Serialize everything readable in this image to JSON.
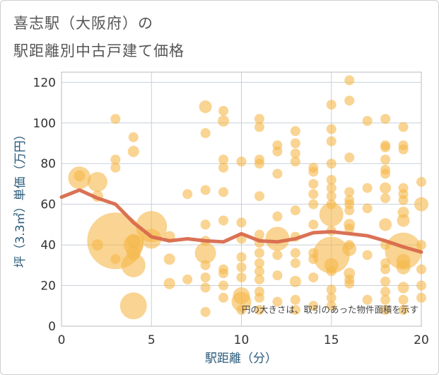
{
  "title_line1": "喜志駅（大阪府）の",
  "title_line2": "駅距離別中古戸建て価格",
  "chart_data": {
    "type": "scatter",
    "title": "喜志駅（大阪府）の 駅距離別中古戸建て価格",
    "xlabel": "駅距離（分）",
    "ylabel": "坪（3.3㎡）単価（万円）",
    "xlim": [
      0,
      20
    ],
    "ylim": [
      0,
      125
    ],
    "xticks": [
      0,
      5,
      10,
      15,
      20
    ],
    "yticks": [
      0,
      20,
      40,
      60,
      80,
      100,
      120
    ],
    "grid": true,
    "annotation": "円の大きさは、取引のあった物件面積を示す",
    "bubble_color": "#f5b84a",
    "line_color": "#d86a4d",
    "bubbles": [
      {
        "x": 1,
        "y": 73,
        "s": 16
      },
      {
        "x": 1,
        "y": 74,
        "s": 8
      },
      {
        "x": 2,
        "y": 71,
        "s": 14
      },
      {
        "x": 2,
        "y": 64,
        "s": 8
      },
      {
        "x": 2,
        "y": 40,
        "s": 8
      },
      {
        "x": 3,
        "y": 102,
        "s": 7
      },
      {
        "x": 3,
        "y": 82,
        "s": 7
      },
      {
        "x": 3,
        "y": 78,
        "s": 7
      },
      {
        "x": 3,
        "y": 42,
        "s": 40
      },
      {
        "x": 3,
        "y": 33,
        "s": 7
      },
      {
        "x": 4,
        "y": 93,
        "s": 7
      },
      {
        "x": 4,
        "y": 86,
        "s": 8
      },
      {
        "x": 4,
        "y": 42,
        "s": 10
      },
      {
        "x": 4,
        "y": 40,
        "s": 14
      },
      {
        "x": 4,
        "y": 36,
        "s": 10
      },
      {
        "x": 4,
        "y": 30,
        "s": 17
      },
      {
        "x": 4,
        "y": 10,
        "s": 19
      },
      {
        "x": 5,
        "y": 49,
        "s": 22
      },
      {
        "x": 5,
        "y": 43,
        "s": 14
      },
      {
        "x": 6,
        "y": 44,
        "s": 8
      },
      {
        "x": 6,
        "y": 33,
        "s": 8
      },
      {
        "x": 6,
        "y": 21,
        "s": 8
      },
      {
        "x": 7,
        "y": 65,
        "s": 7
      },
      {
        "x": 7,
        "y": 23,
        "s": 7
      },
      {
        "x": 8,
        "y": 108,
        "s": 9
      },
      {
        "x": 8,
        "y": 95,
        "s": 7
      },
      {
        "x": 8,
        "y": 67,
        "s": 7
      },
      {
        "x": 8,
        "y": 50,
        "s": 7
      },
      {
        "x": 8,
        "y": 42,
        "s": 7
      },
      {
        "x": 8,
        "y": 36,
        "s": 15
      },
      {
        "x": 8,
        "y": 30,
        "s": 7
      },
      {
        "x": 8,
        "y": 24,
        "s": 7
      },
      {
        "x": 8,
        "y": 19,
        "s": 7
      },
      {
        "x": 8,
        "y": 7,
        "s": 7
      },
      {
        "x": 9,
        "y": 106,
        "s": 7
      },
      {
        "x": 9,
        "y": 101,
        "s": 8
      },
      {
        "x": 9,
        "y": 82,
        "s": 7
      },
      {
        "x": 9,
        "y": 78,
        "s": 7
      },
      {
        "x": 9,
        "y": 66,
        "s": 7
      },
      {
        "x": 9,
        "y": 52,
        "s": 7
      },
      {
        "x": 9,
        "y": 28,
        "s": 7
      },
      {
        "x": 9,
        "y": 26,
        "s": 7
      },
      {
        "x": 9,
        "y": 20,
        "s": 7
      },
      {
        "x": 9,
        "y": 14,
        "s": 7
      },
      {
        "x": 10,
        "y": 81,
        "s": 7
      },
      {
        "x": 10,
        "y": 51,
        "s": 7
      },
      {
        "x": 10,
        "y": 43,
        "s": 7
      },
      {
        "x": 10,
        "y": 34,
        "s": 7
      },
      {
        "x": 10,
        "y": 29,
        "s": 7
      },
      {
        "x": 10,
        "y": 24,
        "s": 7
      },
      {
        "x": 10,
        "y": 15,
        "s": 12
      },
      {
        "x": 10,
        "y": 12,
        "s": 14
      },
      {
        "x": 10,
        "y": 8,
        "s": 7
      },
      {
        "x": 11,
        "y": 102,
        "s": 7
      },
      {
        "x": 11,
        "y": 98,
        "s": 7
      },
      {
        "x": 11,
        "y": 82,
        "s": 7
      },
      {
        "x": 11,
        "y": 80,
        "s": 7
      },
      {
        "x": 11,
        "y": 64,
        "s": 7
      },
      {
        "x": 11,
        "y": 45,
        "s": 7
      },
      {
        "x": 11,
        "y": 41,
        "s": 7
      },
      {
        "x": 11,
        "y": 36,
        "s": 7
      },
      {
        "x": 11,
        "y": 31,
        "s": 7
      },
      {
        "x": 11,
        "y": 27,
        "s": 7
      },
      {
        "x": 11,
        "y": 23,
        "s": 7
      },
      {
        "x": 11,
        "y": 17,
        "s": 7
      },
      {
        "x": 11,
        "y": 14,
        "s": 7
      },
      {
        "x": 11,
        "y": 8,
        "s": 7
      },
      {
        "x": 12,
        "y": 89,
        "s": 7
      },
      {
        "x": 12,
        "y": 86,
        "s": 7
      },
      {
        "x": 12,
        "y": 75,
        "s": 7
      },
      {
        "x": 12,
        "y": 54,
        "s": 7
      },
      {
        "x": 12,
        "y": 43,
        "s": 17
      },
      {
        "x": 12,
        "y": 35,
        "s": 7
      },
      {
        "x": 12,
        "y": 25,
        "s": 7
      },
      {
        "x": 12,
        "y": 12,
        "s": 7
      },
      {
        "x": 13,
        "y": 96,
        "s": 7
      },
      {
        "x": 13,
        "y": 90,
        "s": 7
      },
      {
        "x": 13,
        "y": 85,
        "s": 7
      },
      {
        "x": 13,
        "y": 81,
        "s": 7
      },
      {
        "x": 13,
        "y": 57,
        "s": 7
      },
      {
        "x": 13,
        "y": 44,
        "s": 7
      },
      {
        "x": 13,
        "y": 36,
        "s": 7
      },
      {
        "x": 13,
        "y": 31,
        "s": 7
      },
      {
        "x": 13,
        "y": 22,
        "s": 8
      },
      {
        "x": 13,
        "y": 13,
        "s": 7
      },
      {
        "x": 13,
        "y": 8,
        "s": 7
      },
      {
        "x": 14,
        "y": 78,
        "s": 7
      },
      {
        "x": 14,
        "y": 76,
        "s": 7
      },
      {
        "x": 14,
        "y": 70,
        "s": 7
      },
      {
        "x": 14,
        "y": 65,
        "s": 7
      },
      {
        "x": 14,
        "y": 60,
        "s": 7
      },
      {
        "x": 14,
        "y": 50,
        "s": 7
      },
      {
        "x": 14,
        "y": 36,
        "s": 7
      },
      {
        "x": 14,
        "y": 33,
        "s": 7
      },
      {
        "x": 14,
        "y": 24,
        "s": 7
      },
      {
        "x": 14,
        "y": 10,
        "s": 7
      },
      {
        "x": 15,
        "y": 109,
        "s": 7
      },
      {
        "x": 15,
        "y": 97,
        "s": 7
      },
      {
        "x": 15,
        "y": 91,
        "s": 7
      },
      {
        "x": 15,
        "y": 80,
        "s": 7
      },
      {
        "x": 15,
        "y": 72,
        "s": 7
      },
      {
        "x": 15,
        "y": 68,
        "s": 7
      },
      {
        "x": 15,
        "y": 64,
        "s": 7
      },
      {
        "x": 15,
        "y": 60,
        "s": 7
      },
      {
        "x": 15,
        "y": 55,
        "s": 17
      },
      {
        "x": 15,
        "y": 47,
        "s": 7
      },
      {
        "x": 15,
        "y": 35,
        "s": 26
      },
      {
        "x": 15,
        "y": 30,
        "s": 10
      },
      {
        "x": 15,
        "y": 27,
        "s": 7
      },
      {
        "x": 15,
        "y": 18,
        "s": 7
      },
      {
        "x": 15,
        "y": 14,
        "s": 7
      },
      {
        "x": 15,
        "y": 10,
        "s": 7
      },
      {
        "x": 16,
        "y": 121,
        "s": 7
      },
      {
        "x": 16,
        "y": 111,
        "s": 7
      },
      {
        "x": 16,
        "y": 83,
        "s": 7
      },
      {
        "x": 16,
        "y": 66,
        "s": 7
      },
      {
        "x": 16,
        "y": 62,
        "s": 7
      },
      {
        "x": 16,
        "y": 60,
        "s": 7
      },
      {
        "x": 16,
        "y": 57,
        "s": 7
      },
      {
        "x": 16,
        "y": 50,
        "s": 8
      },
      {
        "x": 16,
        "y": 48,
        "s": 7
      },
      {
        "x": 16,
        "y": 40,
        "s": 7
      },
      {
        "x": 16,
        "y": 38,
        "s": 10
      },
      {
        "x": 16,
        "y": 26,
        "s": 8
      },
      {
        "x": 16,
        "y": 23,
        "s": 7
      },
      {
        "x": 16,
        "y": 21,
        "s": 7
      },
      {
        "x": 17,
        "y": 101,
        "s": 7
      },
      {
        "x": 17,
        "y": 68,
        "s": 7
      },
      {
        "x": 17,
        "y": 58,
        "s": 7
      },
      {
        "x": 17,
        "y": 35,
        "s": 7
      },
      {
        "x": 17,
        "y": 13,
        "s": 7
      },
      {
        "x": 18,
        "y": 102,
        "s": 7
      },
      {
        "x": 18,
        "y": 89,
        "s": 7
      },
      {
        "x": 18,
        "y": 88,
        "s": 7
      },
      {
        "x": 18,
        "y": 82,
        "s": 7
      },
      {
        "x": 18,
        "y": 77,
        "s": 7
      },
      {
        "x": 18,
        "y": 75,
        "s": 7
      },
      {
        "x": 18,
        "y": 68,
        "s": 8
      },
      {
        "x": 18,
        "y": 63,
        "s": 7
      },
      {
        "x": 18,
        "y": 50,
        "s": 9
      },
      {
        "x": 18,
        "y": 40,
        "s": 7
      },
      {
        "x": 18,
        "y": 31,
        "s": 7
      },
      {
        "x": 18,
        "y": 28,
        "s": 7
      },
      {
        "x": 18,
        "y": 22,
        "s": 7
      },
      {
        "x": 18,
        "y": 17,
        "s": 7
      },
      {
        "x": 18,
        "y": 13,
        "s": 7
      },
      {
        "x": 18,
        "y": 8,
        "s": 7
      },
      {
        "x": 19,
        "y": 98,
        "s": 7
      },
      {
        "x": 19,
        "y": 89,
        "s": 7
      },
      {
        "x": 19,
        "y": 87,
        "s": 7
      },
      {
        "x": 19,
        "y": 68,
        "s": 7
      },
      {
        "x": 19,
        "y": 65,
        "s": 7
      },
      {
        "x": 19,
        "y": 62,
        "s": 7
      },
      {
        "x": 19,
        "y": 56,
        "s": 8
      },
      {
        "x": 19,
        "y": 52,
        "s": 9
      },
      {
        "x": 19,
        "y": 37,
        "s": 26
      },
      {
        "x": 19,
        "y": 32,
        "s": 10
      },
      {
        "x": 19,
        "y": 29,
        "s": 10
      },
      {
        "x": 19,
        "y": 19,
        "s": 8
      },
      {
        "x": 19,
        "y": 13,
        "s": 7
      },
      {
        "x": 19,
        "y": 8,
        "s": 7
      },
      {
        "x": 20,
        "y": 71,
        "s": 7
      },
      {
        "x": 20,
        "y": 60,
        "s": 10
      },
      {
        "x": 20,
        "y": 40,
        "s": 7
      },
      {
        "x": 20,
        "y": 28,
        "s": 7
      },
      {
        "x": 20,
        "y": 20,
        "s": 7
      },
      {
        "x": 20,
        "y": 14,
        "s": 7
      }
    ],
    "trend": {
      "x": [
        0,
        1,
        2,
        3,
        4,
        5,
        6,
        7,
        8,
        9,
        10,
        11,
        12,
        13,
        14,
        15,
        16,
        17,
        18,
        19,
        20
      ],
      "y": [
        63.5,
        67,
        63,
        60,
        51,
        44,
        42,
        43,
        42,
        41.5,
        45.5,
        42,
        41.5,
        43,
        46,
        46.5,
        45.5,
        44.5,
        42,
        39,
        36.5
      ]
    }
  }
}
